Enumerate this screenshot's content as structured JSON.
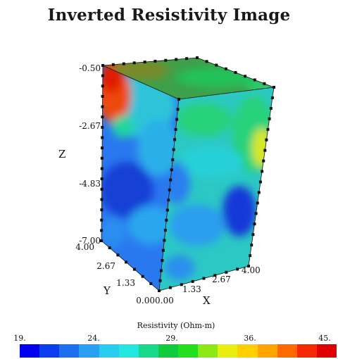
{
  "chart_data": {
    "type": "heatmap",
    "title": "Inverted Resistivity Image",
    "axes": {
      "x": {
        "label": "X",
        "ticks": [
          "0.00",
          "1.33",
          "2.67",
          "4.00"
        ],
        "range": [
          0,
          4
        ]
      },
      "y": {
        "label": "Y",
        "ticks": [
          "0.00",
          "1.33",
          "2.67",
          "4.00"
        ],
        "range": [
          0,
          4
        ]
      },
      "z": {
        "label": "Z",
        "ticks": [
          "-0.50",
          "-2.67",
          "-4.83",
          "-7.00"
        ],
        "range": [
          -7,
          -0.5
        ]
      }
    },
    "colorbar": {
      "title": "Resistivity (Ohm-m)",
      "ticks": [
        "19.",
        "24.",
        "29.",
        "36.",
        "45."
      ],
      "range": [
        19,
        45
      ],
      "colors": [
        "#0000ee",
        "#0a3cf0",
        "#1e6ef2",
        "#2aa0f5",
        "#29cdf0",
        "#22e6e0",
        "#18d98a",
        "#10cc3c",
        "#22e01e",
        "#8ee816",
        "#e8ee10",
        "#ffd000",
        "#ffa500",
        "#ff6a00",
        "#f52a00",
        "#e00000"
      ]
    },
    "faces": {
      "top": {
        "dominant": "green",
        "high_resistivity_corner": "x=0,y=4 (red ~42)"
      },
      "front_left": {
        "dominant": "blue",
        "notes": "red/orange anomaly near top-left (~40-45), deep blue zone mid-depth (~19-22)"
      },
      "front_right": {
        "dominant": "cyan-green",
        "notes": "yellow zone near top right (~34-36), blue zone near bottom right (~21-23)"
      }
    }
  }
}
